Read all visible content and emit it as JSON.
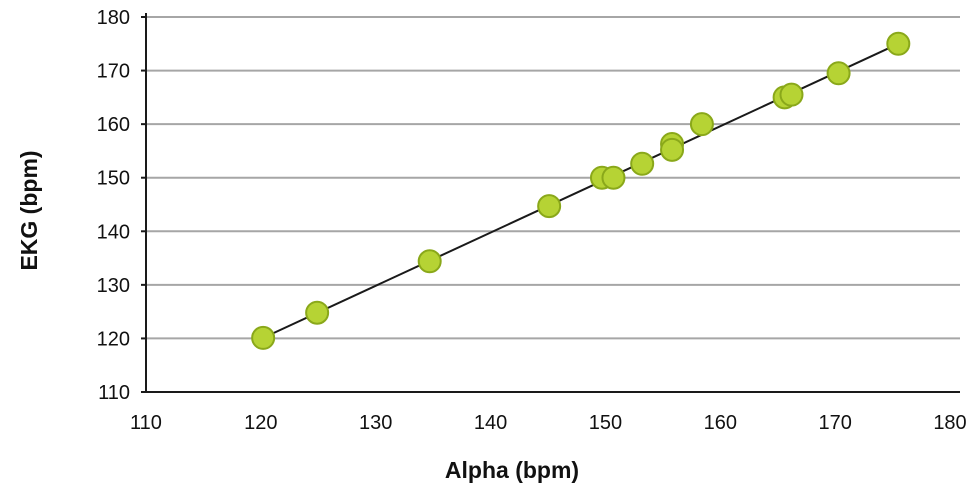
{
  "chart_data": {
    "type": "scatter",
    "title": "",
    "xlabel": "Alpha (bpm)",
    "ylabel": "EKG (bpm)",
    "xlim": [
      110,
      180
    ],
    "ylim": [
      110,
      180
    ],
    "xticks": [
      "110",
      "120",
      "130",
      "140",
      "150",
      "160",
      "170",
      "180"
    ],
    "yticks": [
      "110",
      "120",
      "130",
      "140",
      "150",
      "160",
      "170",
      "180"
    ],
    "grid": "horizontal",
    "legend": "none",
    "trendline": {
      "x": [
        120.2,
        175.5
      ],
      "y": [
        120.1,
        175.0
      ]
    },
    "series": [
      {
        "points": [
          {
            "x": 120.2,
            "y": 120.1
          },
          {
            "x": 124.9,
            "y": 124.8
          },
          {
            "x": 134.7,
            "y": 134.4
          },
          {
            "x": 145.1,
            "y": 144.7
          },
          {
            "x": 149.7,
            "y": 150.0
          },
          {
            "x": 150.7,
            "y": 150.0
          },
          {
            "x": 153.2,
            "y": 152.6
          },
          {
            "x": 155.8,
            "y": 156.3
          },
          {
            "x": 155.8,
            "y": 155.2
          },
          {
            "x": 158.4,
            "y": 160.0
          },
          {
            "x": 165.6,
            "y": 165.0
          },
          {
            "x": 166.2,
            "y": 165.5
          },
          {
            "x": 170.3,
            "y": 169.5
          },
          {
            "x": 175.5,
            "y": 175.0
          }
        ]
      }
    ]
  },
  "colors": {
    "point_fill": "#b6d334",
    "point_stroke": "#8aa81a",
    "trendline": "#1a1a1a",
    "gridline": "#a6a6a6",
    "axis": "#1a1a1a"
  }
}
